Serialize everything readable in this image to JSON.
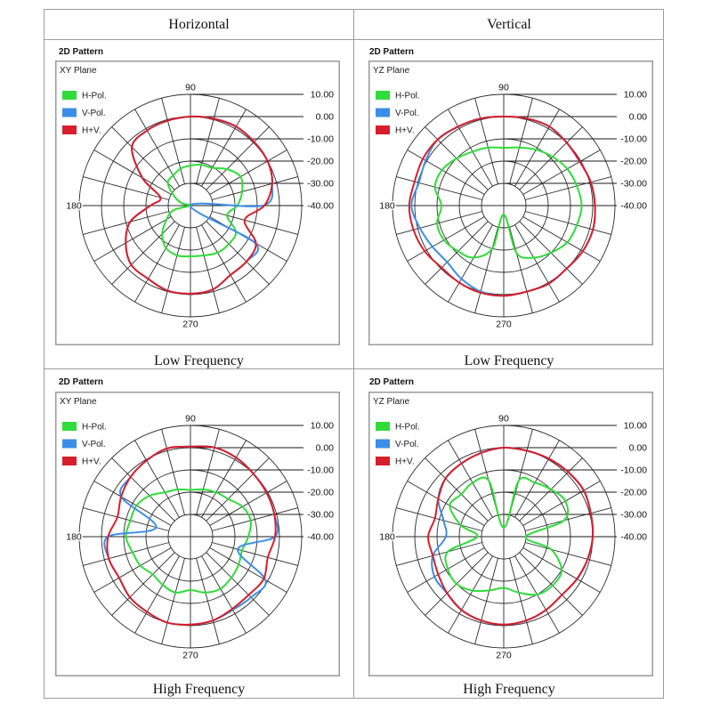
{
  "table": {
    "columns": [
      "Horizontal",
      "Vertical"
    ]
  },
  "chart_data": [
    {
      "type": "line",
      "projection": "polar",
      "title": "2D Pattern",
      "subtitle": "XY Plane",
      "caption": "Low Frequency",
      "legend": "top-left",
      "grid": true,
      "rlim": [
        -40,
        10
      ],
      "radial_tick_labels": [
        "10.00",
        "0.00",
        "-10.00",
        "-20.00",
        "-30.00",
        "-40.00"
      ],
      "theta_tick_labels": [
        "90",
        "180",
        "270"
      ],
      "theta": [
        0,
        15,
        30,
        45,
        60,
        75,
        90,
        105,
        120,
        135,
        150,
        165,
        180,
        195,
        210,
        225,
        240,
        255,
        270,
        285,
        300,
        315,
        330,
        345
      ],
      "series": [
        {
          "name": "H-Pol.",
          "color": "#2fdc3a",
          "values": [
            -19,
            -16,
            -14,
            -16.8,
            -20.4,
            -21,
            -22,
            -22.8,
            -24.4,
            -25.6,
            -31.6,
            -36,
            -40,
            -32,
            -27.6,
            -22,
            -18,
            -16.8,
            -17.2,
            -16.8,
            -15.6,
            -15.6,
            -16.4,
            -23
          ]
        },
        {
          "name": "V-Pol.",
          "color": "#3b8ee8",
          "values": [
            -7.5,
            -2,
            0,
            0.5,
            1,
            0.4,
            0,
            -0.5,
            -1,
            -2.8,
            -15,
            -26,
            -22,
            -12,
            -6.4,
            -2.4,
            -2,
            -0.4,
            -0.4,
            -1,
            -4,
            -4.4,
            -6.5,
            -40
          ]
        },
        {
          "name": "H+V.",
          "color": "#d81e2b",
          "values": [
            -6.8,
            -2,
            0,
            0.5,
            1,
            0.4,
            0,
            -0.5,
            -1,
            -2.8,
            -15,
            -26,
            -22,
            -12,
            -6.4,
            -2.4,
            -2,
            -0.4,
            -0.4,
            -1,
            -4,
            -4.4,
            -6,
            -14.8
          ]
        }
      ]
    },
    {
      "type": "line",
      "projection": "polar",
      "title": "2D Pattern",
      "subtitle": "YZ Plane",
      "caption": "Low Frequency",
      "legend": "top-left",
      "grid": true,
      "rlim": [
        -40,
        10
      ],
      "radial_tick_labels": [
        "10.00",
        "0.00",
        "-10.00",
        "-20.00",
        "-30.00",
        "-40.00"
      ],
      "theta_tick_labels": [
        "90",
        "180",
        "270"
      ],
      "theta": [
        0,
        15,
        30,
        45,
        60,
        75,
        90,
        105,
        120,
        135,
        150,
        165,
        180,
        195,
        210,
        225,
        240,
        255,
        270,
        285,
        300,
        315,
        330,
        345
      ],
      "series": [
        {
          "name": "H-Pol.",
          "color": "#2fdc3a",
          "values": [
            -5,
            -6,
            -7,
            -9,
            -11,
            -13,
            -14,
            -13,
            -12,
            -10,
            -8,
            -8,
            -12,
            -9,
            -9,
            -11,
            -13,
            -20,
            -36,
            -18,
            -13,
            -10,
            -7,
            -6
          ]
        },
        {
          "name": "V-Pol.",
          "color": "#3b8ee8",
          "values": [
            1,
            0.5,
            -0.5,
            0,
            1,
            0.5,
            0,
            0.5,
            1,
            2,
            0.5,
            -0.5,
            1.5,
            -1,
            -3,
            -4,
            -2,
            0,
            0.5,
            0,
            0.5,
            0,
            1,
            1.5
          ]
        },
        {
          "name": "H+V.",
          "color": "#d81e2b",
          "values": [
            1,
            0.5,
            -0.5,
            0,
            1,
            0.5,
            0,
            0.5,
            1,
            2,
            2,
            1.5,
            2.5,
            2,
            1,
            -0.5,
            0,
            0.5,
            0.5,
            0,
            0.5,
            0,
            1,
            1.5
          ]
        }
      ]
    },
    {
      "type": "line",
      "projection": "polar",
      "title": "2D Pattern",
      "subtitle": "XY Plane",
      "caption": "High Frequency",
      "legend": "top-left",
      "grid": true,
      "rlim": [
        -40,
        10
      ],
      "radial_tick_labels": [
        "10.00",
        "0.00",
        "-10.00",
        "-20.00",
        "-30.00",
        "-40.00"
      ],
      "theta_tick_labels": [
        "90",
        "180",
        "270"
      ],
      "theta": [
        0,
        15,
        30,
        45,
        60,
        75,
        90,
        105,
        120,
        135,
        150,
        165,
        180,
        195,
        210,
        225,
        240,
        255,
        270,
        285,
        300,
        315,
        330,
        345
      ],
      "series": [
        {
          "name": "H-Pol.",
          "color": "#2fdc3a",
          "values": [
            -14,
            -12,
            -13,
            -16,
            -17,
            -18,
            -19,
            -18,
            -17,
            -14,
            -12,
            -12,
            -11,
            -13,
            -14,
            -16,
            -15,
            -14,
            -16,
            -14,
            -13,
            -14,
            -15,
            -16
          ]
        },
        {
          "name": "V-Pol.",
          "color": "#3b8ee8",
          "values": [
            -2,
            -1,
            -0.5,
            0,
            1,
            1.5,
            0.5,
            1,
            -0.5,
            -2,
            -4,
            -24,
            -3,
            -2,
            -3,
            -1.5,
            -1,
            0,
            -0.5,
            -1,
            -2,
            -1.5,
            -1,
            -18
          ]
        },
        {
          "name": "H+V.",
          "color": "#d81e2b",
          "values": [
            -2,
            -1,
            -0.5,
            0,
            1,
            1.5,
            0.5,
            1,
            -0.5,
            -2,
            -4,
            -6,
            -3,
            -2,
            -3,
            -1.5,
            -1,
            0,
            -0.5,
            -1,
            -2.5,
            -3,
            -2,
            -4
          ]
        }
      ]
    },
    {
      "type": "line",
      "projection": "polar",
      "title": "2D Pattern",
      "subtitle": "YZ Plane",
      "caption": "High Frequency",
      "legend": "top-left",
      "grid": true,
      "rlim": [
        -40,
        10
      ],
      "radial_tick_labels": [
        "10.00",
        "0.00",
        "-10.00",
        "-20.00",
        "-30.00",
        "-40.00"
      ],
      "theta_tick_labels": [
        "90",
        "180",
        "270"
      ],
      "theta": [
        0,
        15,
        30,
        45,
        60,
        75,
        90,
        105,
        120,
        135,
        150,
        165,
        180,
        195,
        210,
        225,
        240,
        255,
        270,
        285,
        300,
        315,
        330,
        345
      ],
      "series": [
        {
          "name": "H-Pol.",
          "color": "#2fdc3a",
          "values": [
            -30,
            -12,
            -8,
            -10,
            -12,
            -14,
            -36,
            -14,
            -12,
            -13,
            -12,
            -20,
            -28,
            -14,
            -11,
            -10,
            -12,
            -15,
            -17,
            -14,
            -10,
            -9,
            -10,
            -18
          ]
        },
        {
          "name": "V-Pol.",
          "color": "#3b8ee8",
          "values": [
            0,
            0.5,
            1.5,
            1,
            0.5,
            0,
            0,
            -1,
            -2,
            -3,
            -6,
            -12,
            -14,
            -7,
            -4,
            -4,
            -2,
            -1,
            -0.5,
            -1,
            -2,
            -3,
            -2,
            -1
          ]
        },
        {
          "name": "H+V.",
          "color": "#d81e2b",
          "values": [
            0,
            0.5,
            1.5,
            1,
            0.5,
            0,
            0,
            -1,
            -2,
            -3,
            -6,
            -8,
            -6,
            -7,
            -6,
            -4,
            -2,
            -1,
            -0.5,
            -1,
            -2,
            -3,
            -2,
            -1
          ]
        }
      ]
    }
  ]
}
